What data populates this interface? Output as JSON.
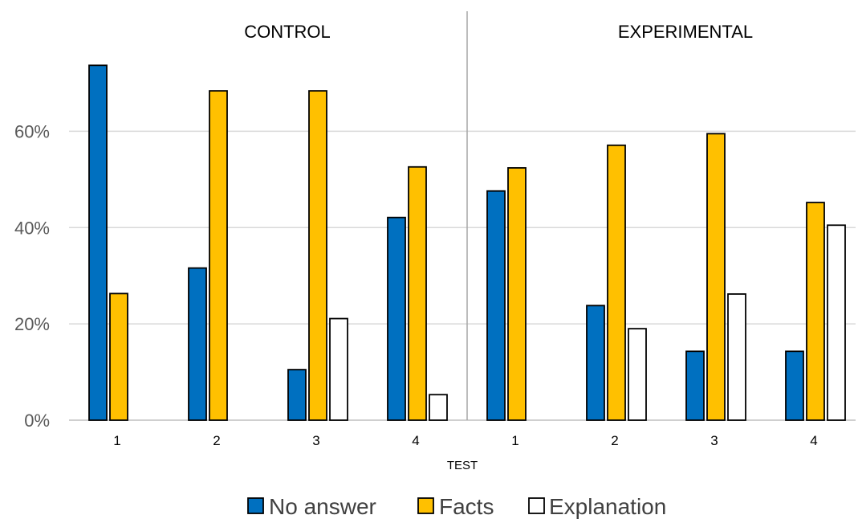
{
  "chart_data": {
    "type": "bar",
    "xlabel": "TEST",
    "ylabel": "",
    "ylim": [
      0,
      0.75
    ],
    "yticks": [
      "0%",
      "20%",
      "40%",
      "60%"
    ],
    "grid": true,
    "legend_position": "bottom",
    "colors": {
      "No answer": "#0070c0",
      "Facts": "#ffc000",
      "Explanation": "#ffffff",
      "outline": "#000000",
      "grid": "#d9d9d9",
      "divider": "#a6a6a6"
    },
    "series_names": [
      "No answer",
      "Facts",
      "Explanation"
    ],
    "panels": [
      {
        "title": "CONTROL",
        "categories": [
          "1",
          "2",
          "3",
          "4"
        ],
        "series": [
          {
            "name": "No answer",
            "values": [
              0.737,
              0.316,
              0.105,
              0.421
            ]
          },
          {
            "name": "Facts",
            "values": [
              0.263,
              0.684,
              0.684,
              0.526
            ]
          },
          {
            "name": "Explanation",
            "values": [
              0,
              0,
              0.211,
              0.053
            ]
          }
        ]
      },
      {
        "title": "EXPERIMENTAL",
        "categories": [
          "1",
          "2",
          "3",
          "4"
        ],
        "series": [
          {
            "name": "No answer",
            "values": [
              0.476,
              0.238,
              0.143,
              0.143
            ]
          },
          {
            "name": "Facts",
            "values": [
              0.524,
              0.571,
              0.595,
              0.452
            ]
          },
          {
            "name": "Explanation",
            "values": [
              0,
              0.19,
              0.262,
              0.405
            ]
          }
        ]
      }
    ]
  }
}
